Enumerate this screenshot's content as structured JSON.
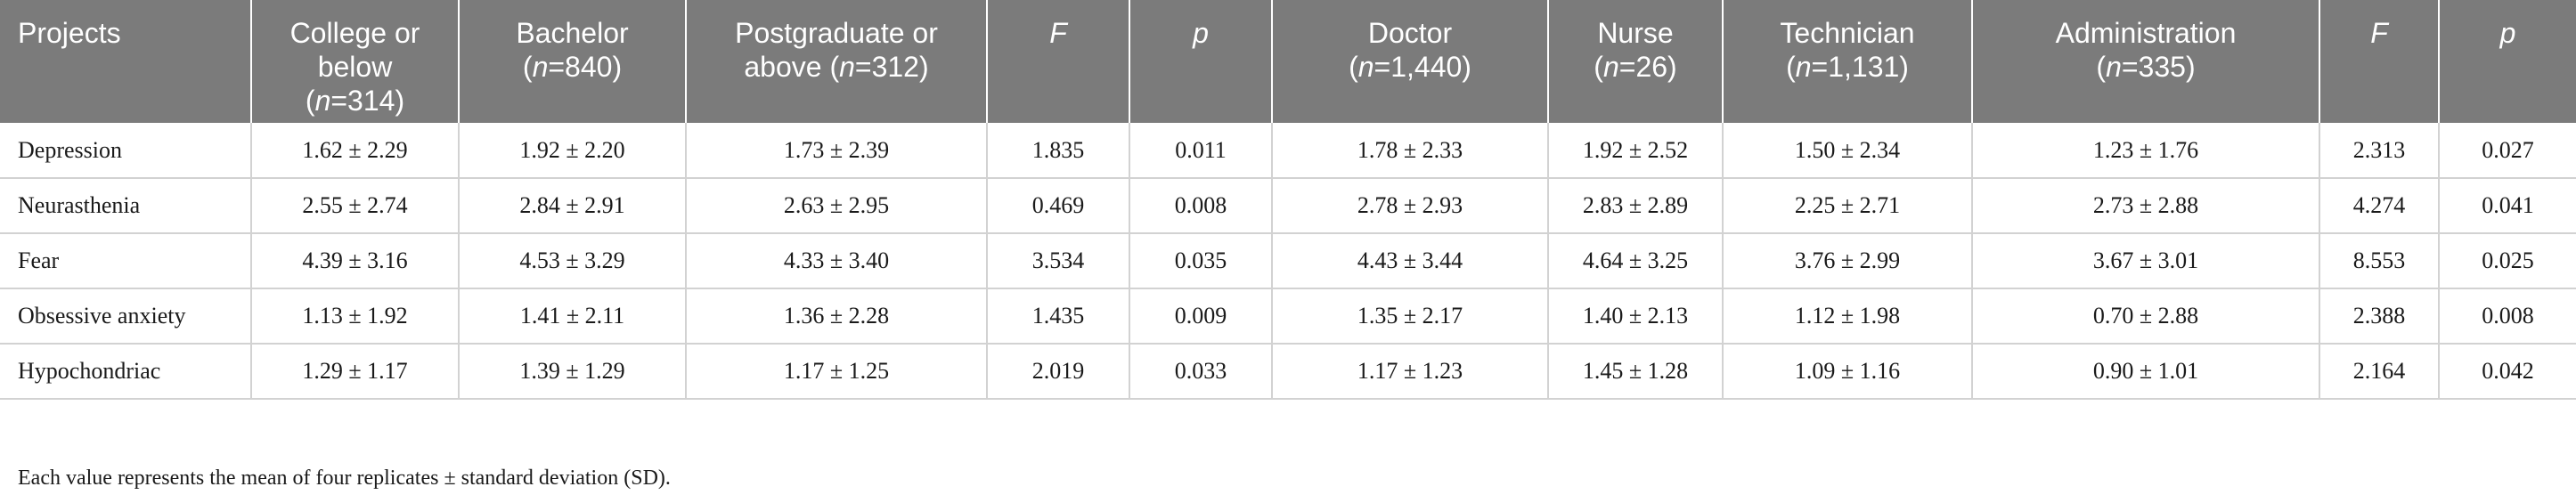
{
  "table": {
    "headers": [
      {
        "key": "projects",
        "lines": [
          [
            "Projects",
            ""
          ]
        ]
      },
      {
        "key": "college",
        "lines": [
          [
            "College or",
            ""
          ],
          [
            "below",
            ""
          ],
          [
            "(",
            "n",
            "=314)"
          ]
        ]
      },
      {
        "key": "bachelor",
        "lines": [
          [
            "Bachelor",
            ""
          ],
          [
            "(",
            "n",
            "=840)"
          ]
        ]
      },
      {
        "key": "postgraduate",
        "lines": [
          [
            "Postgraduate or",
            ""
          ],
          [
            "above (",
            "n",
            "=312)"
          ]
        ]
      },
      {
        "key": "f1",
        "lines": [
          [
            "",
            "F",
            ""
          ]
        ]
      },
      {
        "key": "p1",
        "lines": [
          [
            "",
            "p",
            ""
          ]
        ]
      },
      {
        "key": "doctor",
        "lines": [
          [
            "Doctor",
            ""
          ],
          [
            "(",
            "n",
            "=1,440)"
          ]
        ]
      },
      {
        "key": "nurse",
        "lines": [
          [
            "Nurse",
            ""
          ],
          [
            "(",
            "n",
            "=26)"
          ]
        ]
      },
      {
        "key": "technician",
        "lines": [
          [
            "Technician",
            ""
          ],
          [
            "(",
            "n",
            "=1,131)"
          ]
        ]
      },
      {
        "key": "administration",
        "lines": [
          [
            "Administration",
            ""
          ],
          [
            "(",
            "n",
            "=335)"
          ]
        ]
      },
      {
        "key": "f2",
        "lines": [
          [
            "",
            "F",
            ""
          ]
        ]
      },
      {
        "key": "p2",
        "lines": [
          [
            "",
            "p",
            ""
          ]
        ]
      }
    ],
    "rows": [
      [
        "Depression",
        "1.62 ± 2.29",
        "1.92 ± 2.20",
        "1.73 ± 2.39",
        "1.835",
        "0.011",
        "1.78 ± 2.33",
        "1.92 ± 2.52",
        "1.50 ± 2.34",
        "1.23 ± 1.76",
        "2.313",
        "0.027"
      ],
      [
        "Neurasthenia",
        "2.55 ± 2.74",
        "2.84 ± 2.91",
        "2.63 ± 2.95",
        "0.469",
        "0.008",
        "2.78 ± 2.93",
        "2.83 ± 2.89",
        "2.25 ± 2.71",
        "2.73 ± 2.88",
        "4.274",
        "0.041"
      ],
      [
        "Fear",
        "4.39 ± 3.16",
        "4.53 ± 3.29",
        "4.33 ± 3.40",
        "3.534",
        "0.035",
        "4.43 ± 3.44",
        "4.64 ± 3.25",
        "3.76 ± 2.99",
        "3.67 ± 3.01",
        "8.553",
        "0.025"
      ],
      [
        "Obsessive anxiety",
        "1.13 ± 1.92",
        "1.41 ± 2.11",
        "1.36 ± 2.28",
        "1.435",
        "0.009",
        "1.35 ± 2.17",
        "1.40 ± 2.13",
        "1.12 ± 1.98",
        "0.70 ± 2.88",
        "2.388",
        "0.008"
      ],
      [
        "Hypochondriac",
        "1.29 ± 1.17",
        "1.39 ± 1.29",
        "1.17 ± 1.25",
        "2.019",
        "0.033",
        "1.17 ± 1.23",
        "1.45 ± 1.28",
        "1.09 ± 1.16",
        "0.90 ± 1.01",
        "2.164",
        "0.042"
      ]
    ]
  },
  "footnote": "Each value represents the mean of four replicates ± standard deviation (SD).",
  "colors": {
    "header_bg": "#7b7b7b",
    "header_text": "#ffffff",
    "grid": "#d2d2d2",
    "body_text": "#1a1a1a"
  }
}
